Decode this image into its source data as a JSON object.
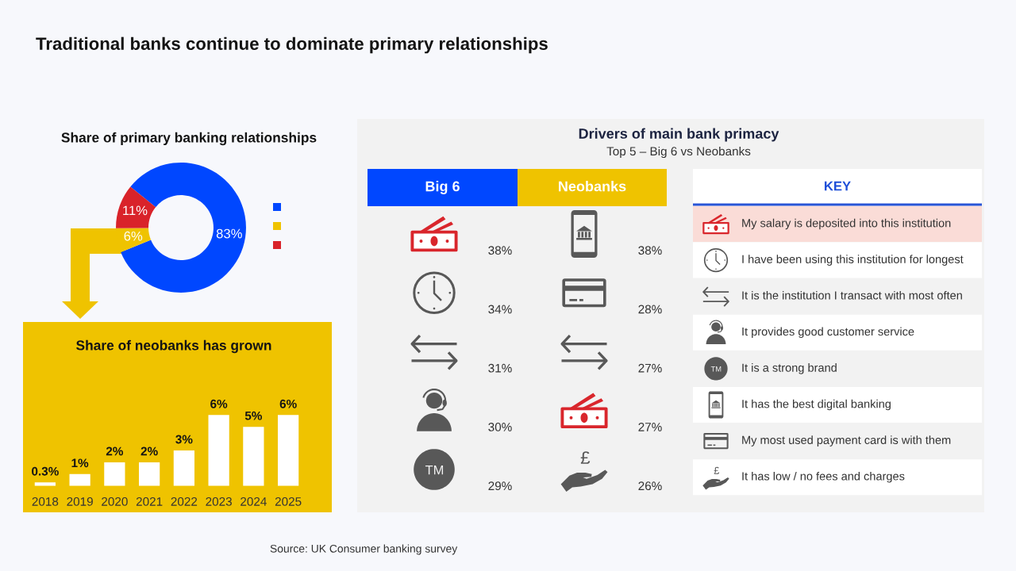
{
  "chart_data": [
    {
      "type": "other",
      "title": "Traditional banks continue to dominate primary relationships",
      "annotations": [
        "Source: UK Consumer banking survey"
      ]
    },
    {
      "type": "donut",
      "title": "Share of primary banking relationships",
      "categories": [
        null,
        null,
        null
      ],
      "values": [
        83,
        6,
        11
      ],
      "colors": [
        "#0047ff",
        "#efc300",
        "#d9232a"
      ],
      "value_labels": [
        "83%",
        "6%",
        "11%"
      ]
    },
    {
      "type": "bar",
      "title": "Share of neobanks has grown",
      "categories": [
        "2018",
        "2019",
        "2020",
        "2021",
        "2022",
        "2023",
        "2024",
        "2025"
      ],
      "values": [
        0.3,
        1,
        2,
        2,
        3,
        6,
        5,
        6
      ],
      "color": "#ffffff",
      "value_labels": [
        "0.3%",
        "1%",
        "2%",
        "2%",
        "3%",
        "6%",
        "5%",
        "6%"
      ],
      "tick_labels": "x"
    },
    {
      "type": "other",
      "title": "Drivers of main bank primacy",
      "subtitle": "Top 5 – Big 6 vs Neobanks",
      "categories": [
        "Big 6",
        "Neobanks"
      ],
      "colors": [
        "#0047ff",
        "#efc300"
      ],
      "series": [
        {
          "values": [
            38,
            38
          ],
          "value_labels": [
            "38%",
            "38%"
          ]
        },
        {
          "values": [
            34,
            28
          ],
          "value_labels": [
            "34%",
            "28%"
          ]
        },
        {
          "values": [
            31,
            27
          ],
          "value_labels": [
            "31%",
            "27%"
          ]
        },
        {
          "values": [
            30,
            27
          ],
          "value_labels": [
            "30%",
            "27%"
          ]
        },
        {
          "values": [
            29,
            26
          ],
          "value_labels": [
            "29%",
            "26%"
          ]
        }
      ]
    },
    {
      "type": "other",
      "title": "KEY",
      "categories": [
        "My salary is deposited into this institution",
        "I have been using this institution for longest",
        "It is the institution I transact with most often",
        "It provides good customer service",
        "It is a strong brand",
        "It has the best digital banking",
        "My most used payment card is with them",
        "It has low / no fees and charges"
      ],
      "colors": [
        "#fadcd7",
        "#ffffff",
        null,
        "#ffffff",
        null,
        "#ffffff",
        null,
        "#ffffff"
      ]
    }
  ]
}
